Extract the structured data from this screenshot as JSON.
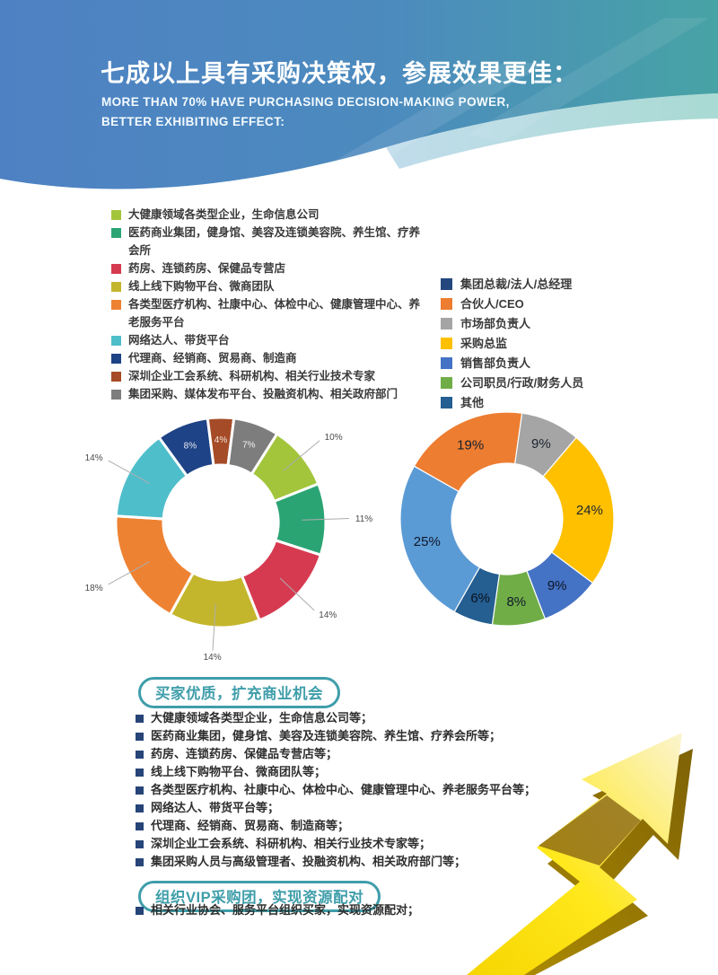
{
  "header": {
    "title": "七成以上具有采购决策权，参展效果更佳：",
    "subtitle_line1": "MORE THAN 70% HAVE PURCHASING DECISION-MAKING POWER,",
    "subtitle_line2": "BETTER EXHIBITING EFFECT:",
    "gradient_left": "#4E81C3",
    "gradient_right": "#47A3A5"
  },
  "legend_left": {
    "items": [
      {
        "label": "大健康领域各类型企业，生命信息公司",
        "color": "#A3C53C"
      },
      {
        "label": "医药商业集团，健身馆、美容及连锁美容院、养生馆、疗养会所",
        "color": "#2BA474"
      },
      {
        "label": "药房、连锁药房、保健品专营店",
        "color": "#D63A50"
      },
      {
        "label": "线上线下购物平台、微商团队",
        "color": "#C4B62C"
      },
      {
        "label": "各类型医疗机构、社康中心、体检中心、健康管理中心、养老服务平台",
        "color": "#EE8233"
      },
      {
        "label": "网络达人、带货平台",
        "color": "#4FBECB"
      },
      {
        "label": "代理商、经销商、贸易商、制造商",
        "color": "#1E4386"
      },
      {
        "label": "深圳企业工会系统、科研机构、相关行业技术专家",
        "color": "#A54B27"
      },
      {
        "label": "集团采购、媒体发布平台、投融资机构、相关政府部门",
        "color": "#7D7D7D"
      }
    ]
  },
  "legend_right": {
    "items": [
      {
        "label": "集团总裁/法人/总经理",
        "color": "#24477D"
      },
      {
        "label": "合伙人/CEO",
        "color": "#ED7D31"
      },
      {
        "label": "市场部负责人",
        "color": "#A5A5A5"
      },
      {
        "label": "采购总监",
        "color": "#FFC000"
      },
      {
        "label": "销售部负责人",
        "color": "#4472C4"
      },
      {
        "label": "公司职员/行政/财务人员",
        "color": "#70AD47"
      },
      {
        "label": "其他",
        "color": "#255E91"
      }
    ]
  },
  "chart_data": [
    {
      "type": "donut",
      "name": "buyer-type-share",
      "start_angle": 32.4,
      "unit": "%",
      "slices": [
        {
          "label": "大健康领域各类型企业，生命信息公司",
          "value": 10,
          "color": "#A3C53C",
          "label_pos": "outside"
        },
        {
          "label": "医药商业集团，健身馆、美容及连锁美容院、养生馆、疗养会所",
          "value": 11,
          "color": "#2BA474",
          "label_pos": "outside"
        },
        {
          "label": "药房、连锁药房、保健品专营店",
          "value": 14,
          "color": "#D63A50",
          "label_pos": "outside"
        },
        {
          "label": "线上线下购物平台、微商团队",
          "value": 14,
          "color": "#C4B62C",
          "label_pos": "outside"
        },
        {
          "label": "各类型医疗机构、社康中心、体检中心、健康管理中心、养老服务平台",
          "value": 18,
          "color": "#EE8233",
          "label_pos": "outside"
        },
        {
          "label": "网络达人、带货平台",
          "value": 14,
          "color": "#4FBECB",
          "label_pos": "outside"
        },
        {
          "label": "代理商、经销商、贸易商、制造商",
          "value": 8,
          "color": "#1E4386",
          "label_pos": "inside",
          "label_color": "#E9EDF5"
        },
        {
          "label": "深圳企业工会系统、科研机构、相关行业技术专家",
          "value": 4,
          "color": "#A54B27",
          "label_pos": "inside",
          "label_color": "#F3E5DC"
        },
        {
          "label": "集团采购、媒体发布平台、投融资机构、相关政府部门",
          "value": 7,
          "color": "#7D7D7D",
          "label_pos": "inside",
          "label_color": "#F2F2F2"
        }
      ]
    },
    {
      "type": "donut",
      "name": "job-title-share",
      "start_angle": 8,
      "unit": "%",
      "slices": [
        {
          "label": "市场部负责人",
          "value": 9,
          "color": "#A5A5A5",
          "label_pos": "inside",
          "label_color": "#1E2430"
        },
        {
          "label": "采购总监",
          "value": 24,
          "color": "#FFC000",
          "label_pos": "inside",
          "label_color": "#1E2430"
        },
        {
          "label": "销售部负责人",
          "value": 9,
          "color": "#4472C4",
          "label_pos": "inside",
          "label_color": "#0E1526"
        },
        {
          "label": "公司职员/行政/财务人员",
          "value": 8,
          "color": "#70AD47",
          "label_pos": "inside",
          "label_color": "#10182B"
        },
        {
          "label": "其他",
          "value": 6,
          "color": "#255E91",
          "label_pos": "inside",
          "label_color": "#0B1220"
        },
        {
          "label": "集团总裁/法人/总经理",
          "value": 25,
          "color": "#5B9BD5",
          "label_pos": "inside",
          "label_color": "#10182B"
        },
        {
          "label": "合伙人/CEO",
          "value": 19,
          "color": "#ED7D31",
          "label_pos": "inside",
          "label_color": "#14202E"
        }
      ]
    }
  ],
  "sections": [
    {
      "title": "买家优质，扩充商业机会",
      "bullets": [
        "大健康领域各类型企业，生命信息公司等；",
        "医药商业集团，健身馆、美容及连锁美容院、养生馆、疗养会所等；",
        "药房、连锁药房、保健品专营店等；",
        "线上线下购物平台、微商团队等；",
        "各类型医疗机构、社康中心、体检中心、健康管理中心、养老服务平台等；",
        "网络达人、带货平台等；",
        "代理商、经销商、贸易商、制造商等；",
        "深圳企业工会系统、科研机构、相关行业技术专家等；",
        "集团采购人员与高级管理者、投融资机构、相关政府部门等；"
      ]
    },
    {
      "title": "组织VIP采购团，实现资源配对",
      "bullets": [
        "相关行业协会、服务平台组织买家，实现资源配对；"
      ]
    }
  ],
  "colors": {
    "accent_teal": "#3F9EAA",
    "bullet_navy": "#264478",
    "leader_line": "#ADADAD",
    "outside_label": "#4A4A4A",
    "arrow_gold": "#FFDF00"
  }
}
